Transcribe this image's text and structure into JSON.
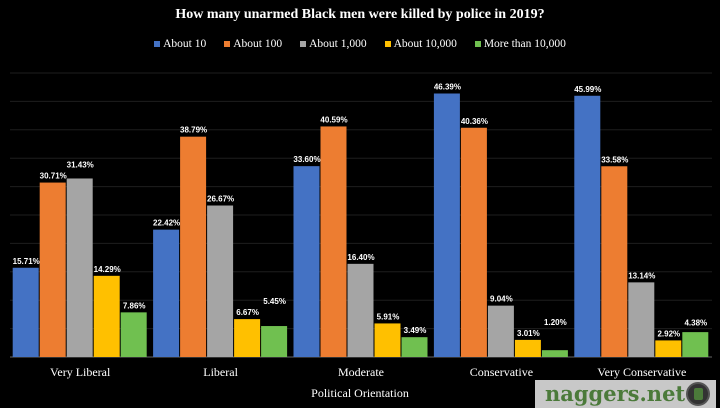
{
  "chart_data": {
    "type": "bar",
    "title": "How many unarmed Black men were killed by police in 2019?",
    "xlabel": "Political Orientation",
    "ylabel": "",
    "ylim": [
      0,
      50
    ],
    "grid": true,
    "legend_position": "top",
    "categories": [
      "Very Liberal",
      "Liberal",
      "Moderate",
      "Conservative",
      "Very Conservative"
    ],
    "series": [
      {
        "name": "About 10",
        "color": "#4472c4",
        "values": [
          15.71,
          22.42,
          33.6,
          46.39,
          45.99
        ],
        "labels": [
          "15.71%",
          "22.42%",
          "33.60%",
          "46.39%",
          "45.99%"
        ]
      },
      {
        "name": "About 100",
        "color": "#ed7d31",
        "values": [
          30.71,
          38.79,
          40.59,
          40.36,
          33.58
        ],
        "labels": [
          "30.71%",
          "38.79%",
          "40.59%",
          "40.36%",
          "33.58%"
        ]
      },
      {
        "name": "About 1,000",
        "color": "#a5a5a5",
        "values": [
          31.43,
          26.67,
          16.4,
          9.04,
          13.14
        ],
        "labels": [
          "31.43%",
          "26.67%",
          "16.40%",
          "9.04%",
          "13.14%"
        ]
      },
      {
        "name": "About 10,000",
        "color": "#ffc000",
        "values": [
          14.29,
          6.67,
          5.91,
          3.01,
          2.92
        ],
        "labels": [
          "14.29%",
          "6.67%",
          "5.91%",
          "3.01%",
          "2.92%"
        ]
      },
      {
        "name": "More than 10,000",
        "color": "#70c050",
        "values": [
          7.86,
          5.45,
          3.49,
          1.2,
          4.38
        ],
        "labels": [
          "7.86%",
          "5.45%",
          "3.49%",
          "1.20%",
          "4.38%"
        ]
      }
    ]
  },
  "watermark": {
    "text": "naggers.net"
  }
}
